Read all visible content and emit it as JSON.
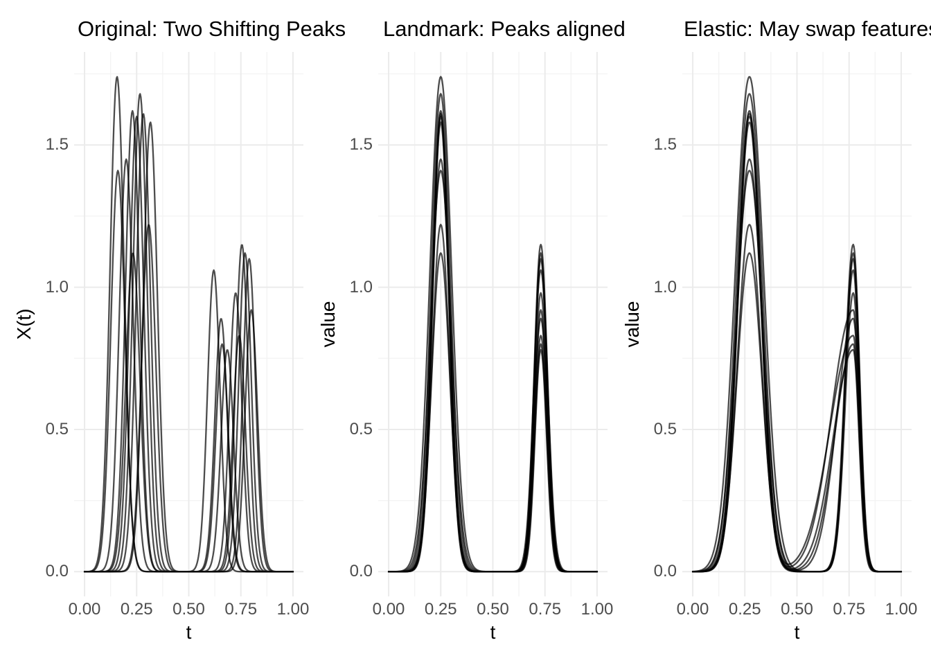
{
  "figure": {
    "background": "#ffffff",
    "grid_major_color": "#ebebeb",
    "grid_minor_color": "#f3f3f3",
    "tick_label_color": "#4d4d4d",
    "axis_title_color": "#000000",
    "title_color": "#000000",
    "curve_color": "#000000",
    "curve_opacity": 0.7,
    "curve_width": 2.3
  },
  "chart_data": [
    {
      "type": "line",
      "title": "Original: Two Shifting Peaks",
      "xlabel": "t",
      "ylabel": "X(t)",
      "xlim": [
        0,
        1
      ],
      "ylim": [
        0,
        1.74
      ],
      "x_ticks": [
        "0.00",
        "0.25",
        "0.50",
        "0.75",
        "1.00"
      ],
      "y_ticks": [
        "0.0",
        "0.5",
        "1.0",
        "1.5"
      ],
      "grid": "major+minor",
      "legend": "none",
      "description": "10 curves, each a sum of two Gaussian peaks; peak positions shift between curves",
      "curves": [
        {
          "peak1": {
            "center": 0.156,
            "height": 1.74,
            "width": 0.034
          },
          "peak2": {
            "center": 0.62,
            "height": 1.06,
            "width": 0.03
          }
        },
        {
          "peak1": {
            "center": 0.266,
            "height": 1.68,
            "width": 0.034
          },
          "peak2": {
            "center": 0.755,
            "height": 1.15,
            "width": 0.03
          }
        },
        {
          "peak1": {
            "center": 0.23,
            "height": 1.62,
            "width": 0.034
          },
          "peak2": {
            "center": 0.66,
            "height": 0.8,
            "width": 0.03
          }
        },
        {
          "peak1": {
            "center": 0.282,
            "height": 1.61,
            "width": 0.034
          },
          "peak2": {
            "center": 0.77,
            "height": 1.12,
            "width": 0.03
          }
        },
        {
          "peak1": {
            "center": 0.25,
            "height": 1.6,
            "width": 0.034
          },
          "peak2": {
            "center": 0.685,
            "height": 0.78,
            "width": 0.03
          }
        },
        {
          "peak1": {
            "center": 0.316,
            "height": 1.58,
            "width": 0.034
          },
          "peak2": {
            "center": 0.79,
            "height": 1.1,
            "width": 0.03
          }
        },
        {
          "peak1": {
            "center": 0.2,
            "height": 1.45,
            "width": 0.034
          },
          "peak2": {
            "center": 0.725,
            "height": 0.98,
            "width": 0.03
          }
        },
        {
          "peak1": {
            "center": 0.16,
            "height": 1.41,
            "width": 0.034
          },
          "peak2": {
            "center": 0.655,
            "height": 0.89,
            "width": 0.03
          }
        },
        {
          "peak1": {
            "center": 0.308,
            "height": 1.22,
            "width": 0.034
          },
          "peak2": {
            "center": 0.8,
            "height": 0.92,
            "width": 0.03
          }
        },
        {
          "peak1": {
            "center": 0.232,
            "height": 1.12,
            "width": 0.034
          },
          "peak2": {
            "center": 0.742,
            "height": 0.83,
            "width": 0.03
          }
        }
      ]
    },
    {
      "type": "line",
      "title": "Landmark: Peaks aligned",
      "xlabel": "t",
      "ylabel": "value",
      "xlim": [
        0,
        1
      ],
      "ylim": [
        0,
        1.74
      ],
      "x_ticks": [
        "0.00",
        "0.25",
        "0.50",
        "0.75",
        "1.00"
      ],
      "y_ticks": [
        "0.0",
        "0.5",
        "1.0",
        "1.5"
      ],
      "grid": "major+minor",
      "legend": "none",
      "description": "Same 10 curves after landmark registration; both peaks aligned at t=0.25 and t=0.73",
      "curves": [
        {
          "peak1": {
            "center": 0.25,
            "height": 1.74,
            "width": 0.052
          },
          "peak2": {
            "center": 0.73,
            "height": 1.06,
            "width": 0.034
          }
        },
        {
          "peak1": {
            "center": 0.25,
            "height": 1.68,
            "width": 0.046
          },
          "peak2": {
            "center": 0.73,
            "height": 1.15,
            "width": 0.032
          }
        },
        {
          "peak1": {
            "center": 0.25,
            "height": 1.62,
            "width": 0.04
          },
          "peak2": {
            "center": 0.73,
            "height": 0.8,
            "width": 0.029
          }
        },
        {
          "peak1": {
            "center": 0.25,
            "height": 1.61,
            "width": 0.041
          },
          "peak2": {
            "center": 0.73,
            "height": 1.12,
            "width": 0.031
          }
        },
        {
          "peak1": {
            "center": 0.25,
            "height": 1.6,
            "width": 0.04
          },
          "peak2": {
            "center": 0.73,
            "height": 0.78,
            "width": 0.028
          }
        },
        {
          "peak1": {
            "center": 0.25,
            "height": 1.58,
            "width": 0.039
          },
          "peak2": {
            "center": 0.73,
            "height": 1.1,
            "width": 0.03
          }
        },
        {
          "peak1": {
            "center": 0.25,
            "height": 1.45,
            "width": 0.044
          },
          "peak2": {
            "center": 0.73,
            "height": 0.98,
            "width": 0.031
          }
        },
        {
          "peak1": {
            "center": 0.25,
            "height": 1.41,
            "width": 0.05
          },
          "peak2": {
            "center": 0.73,
            "height": 0.89,
            "width": 0.033
          }
        },
        {
          "peak1": {
            "center": 0.25,
            "height": 1.22,
            "width": 0.042
          },
          "peak2": {
            "center": 0.73,
            "height": 0.92,
            "width": 0.03
          }
        },
        {
          "peak1": {
            "center": 0.25,
            "height": 1.12,
            "width": 0.044
          },
          "peak2": {
            "center": 0.73,
            "height": 0.83,
            "width": 0.03
          }
        }
      ]
    },
    {
      "type": "line",
      "title": "Elastic: May swap features",
      "xlabel": "t",
      "ylabel": "value",
      "xlim": [
        0,
        1
      ],
      "ylim": [
        0,
        1.74
      ],
      "x_ticks": [
        "0.00",
        "0.25",
        "0.50",
        "0.75",
        "1.00"
      ],
      "y_ticks": [
        "0.0",
        "0.5",
        "1.0",
        "1.5"
      ],
      "grid": "major+minor",
      "legend": "none",
      "description": "Same 10 curves after elastic alignment; peaks at t=0.27 and t=0.77, several warped curves show a shoulder on the left flank of the second peak",
      "curves": [
        {
          "peak1": {
            "center": 0.272,
            "height": 1.74,
            "width": 0.068
          },
          "peak2": {
            "center": 0.77,
            "height": 1.06,
            "width": 0.03,
            "width_left": 0.04
          }
        },
        {
          "peak1": {
            "center": 0.272,
            "height": 1.68,
            "width": 0.062
          },
          "peak2": {
            "center": 0.77,
            "height": 1.15,
            "width": 0.031,
            "width_left": 0.04
          }
        },
        {
          "peak1": {
            "center": 0.272,
            "height": 1.62,
            "width": 0.056
          },
          "peak2": {
            "center": 0.77,
            "height": 0.8,
            "width": 0.029,
            "width_left": 0.088
          }
        },
        {
          "peak1": {
            "center": 0.272,
            "height": 1.61,
            "width": 0.057
          },
          "peak2": {
            "center": 0.77,
            "height": 1.12,
            "width": 0.03,
            "width_left": 0.038
          }
        },
        {
          "peak1": {
            "center": 0.272,
            "height": 1.6,
            "width": 0.056
          },
          "peak2": {
            "center": 0.77,
            "height": 0.78,
            "width": 0.028,
            "width_left": 0.096
          }
        },
        {
          "peak1": {
            "center": 0.272,
            "height": 1.58,
            "width": 0.055
          },
          "peak2": {
            "center": 0.77,
            "height": 1.1,
            "width": 0.03,
            "width_left": 0.038
          }
        },
        {
          "peak1": {
            "center": 0.272,
            "height": 1.45,
            "width": 0.06
          },
          "peak2": {
            "center": 0.77,
            "height": 0.98,
            "width": 0.031,
            "width_left": 0.038
          }
        },
        {
          "peak1": {
            "center": 0.272,
            "height": 1.41,
            "width": 0.065
          },
          "peak2": {
            "center": 0.77,
            "height": 0.89,
            "width": 0.031,
            "width_left": 0.08
          }
        },
        {
          "peak1": {
            "center": 0.272,
            "height": 1.22,
            "width": 0.058
          },
          "peak2": {
            "center": 0.77,
            "height": 0.92,
            "width": 0.03,
            "width_left": 0.104
          }
        },
        {
          "peak1": {
            "center": 0.272,
            "height": 1.12,
            "width": 0.06
          },
          "peak2": {
            "center": 0.77,
            "height": 0.83,
            "width": 0.03,
            "width_left": 0.112
          }
        }
      ]
    }
  ]
}
